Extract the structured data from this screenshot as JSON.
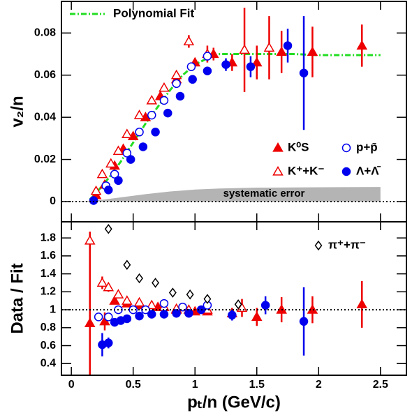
{
  "chart_data": [
    {
      "type": "scatter",
      "ylabel": "v₂/n",
      "xlim": [
        -0.08,
        2.71
      ],
      "ylim": [
        -0.0096,
        0.095
      ],
      "xticks": [
        0,
        0.5,
        1,
        1.5,
        2,
        2.5
      ],
      "yticks": [
        0,
        0.02,
        0.04,
        0.06,
        0.08
      ],
      "reference_line": 0,
      "band": {
        "name": "systematic error",
        "color": "#b4b4b4",
        "x": [
          0,
          0.2,
          0.4,
          0.6,
          0.8,
          1.0,
          1.2,
          1.5,
          2.0,
          2.5
        ],
        "values": [
          0,
          0.0005,
          0.002,
          0.0035,
          0.0048,
          0.0057,
          0.0062,
          0.0066,
          0.0068,
          0.0069
        ]
      },
      "fit": {
        "name": "Polynomial Fit",
        "color": "#22dd22",
        "x": [
          0.15,
          0.2,
          0.3,
          0.4,
          0.5,
          0.6,
          0.7,
          0.8,
          0.9,
          1.0,
          1.1,
          1.2,
          1.4,
          1.6,
          1.8,
          2.0,
          2.2,
          2.5
        ],
        "values": [
          0.001,
          0.004,
          0.011,
          0.019,
          0.028,
          0.037,
          0.045,
          0.053,
          0.06,
          0.065,
          0.068,
          0.07,
          0.07,
          0.07,
          0.07,
          0.0695,
          0.0695,
          0.0695
        ]
      },
      "series": [
        {
          "name": "K⁰S",
          "color": "#ee0000",
          "marker": "triangle",
          "filled": true,
          "x": [
            0.2,
            0.27,
            0.35,
            0.42,
            0.5,
            0.6,
            0.72,
            0.85,
            1.0,
            1.15,
            1.3,
            1.5,
            1.7,
            1.95,
            2.35
          ],
          "values": [
            0.003,
            0.008,
            0.017,
            0.025,
            0.031,
            0.04,
            0.05,
            0.058,
            0.066,
            0.07,
            0.066,
            0.066,
            0.071,
            0.071,
            0.074
          ],
          "errors": [
            0.002,
            0.001,
            0.001,
            0.001,
            0.001,
            0.001,
            0.001,
            0.001,
            0.002,
            0.003,
            0.004,
            0.008,
            0.01,
            0.012,
            0.01
          ]
        },
        {
          "name": "K⁺+K⁻",
          "color": "#ee0000",
          "marker": "triangle",
          "filled": false,
          "x": [
            0.2,
            0.25,
            0.32,
            0.38,
            0.45,
            0.55,
            0.65,
            0.75,
            0.85,
            0.95,
            1.1,
            1.4,
            1.6
          ],
          "values": [
            0.005,
            0.013,
            0.018,
            0.024,
            0.032,
            0.041,
            0.048,
            0.054,
            0.06,
            0.076,
            0.07,
            0.072,
            0.073
          ],
          "errors": [
            0.001,
            0.001,
            0.001,
            0.001,
            0.001,
            0.001,
            0.001,
            0.001,
            0.002,
            0.003,
            0.004,
            0.02,
            0.015
          ]
        },
        {
          "name": "p+p̄",
          "color": "#0000ee",
          "marker": "circle",
          "filled": false,
          "x": [
            0.28,
            0.35,
            0.45,
            0.55,
            0.65,
            0.75,
            0.85,
            0.97,
            1.1
          ],
          "values": [
            0.0075,
            0.013,
            0.023,
            0.033,
            0.041,
            0.048,
            0.056,
            0.064,
            0.069
          ],
          "errors": [
            0.001,
            0.001,
            0.001,
            0.001,
            0.001,
            0.001,
            0.001,
            0.002,
            0.002
          ]
        },
        {
          "name": "Λ+Λ̄",
          "color": "#0000ee",
          "marker": "circle",
          "filled": true,
          "x": [
            0.18,
            0.3,
            0.38,
            0.48,
            0.58,
            0.68,
            0.78,
            0.88,
            0.98,
            1.1,
            1.25,
            1.45,
            1.75,
            1.88
          ],
          "values": [
            0.0005,
            0.0055,
            0.01,
            0.02,
            0.026,
            0.033,
            0.042,
            0.05,
            0.058,
            0.062,
            0.065,
            0.064,
            0.074,
            0.061
          ],
          "errors": [
            0.002,
            0.001,
            0.001,
            0.001,
            0.001,
            0.001,
            0.001,
            0.001,
            0.001,
            0.002,
            0.003,
            0.005,
            0.008,
            0.027
          ]
        }
      ]
    },
    {
      "type": "scatter",
      "xlabel": "pₜ/n (GeV/c)",
      "ylabel": "Data / Fit",
      "xlim": [
        -0.08,
        2.71
      ],
      "ylim": [
        0.27,
        1.98
      ],
      "xticks": [
        0,
        0.5,
        1,
        1.5,
        2,
        2.5
      ],
      "yticks": [
        0.4,
        0.6,
        0.8,
        1,
        1.2,
        1.4,
        1.6,
        1.8
      ],
      "reference_line": 1,
      "series": [
        {
          "name": "K⁰S",
          "color": "#ee0000",
          "marker": "triangle",
          "filled": true,
          "x": [
            0.15,
            0.27,
            0.35,
            0.45,
            0.55,
            0.7,
            0.85,
            1.0,
            1.1,
            1.3,
            1.5,
            1.7,
            1.95,
            2.35
          ],
          "values": [
            0.85,
            0.87,
            1.1,
            1.07,
            1.05,
            1.03,
            1.0,
            0.98,
            0.98,
            0.96,
            0.92,
            1.0,
            1.0,
            1.06
          ],
          "errors": [
            0.9,
            0.1,
            0.04,
            0.03,
            0.03,
            0.03,
            0.03,
            0.03,
            0.04,
            0.06,
            0.1,
            0.14,
            0.15,
            0.26
          ]
        },
        {
          "name": "K⁺+K⁻",
          "color": "#ee0000",
          "marker": "triangle",
          "filled": false,
          "x": [
            0.15,
            0.25,
            0.3,
            0.38,
            0.45,
            0.55,
            0.65,
            0.75,
            0.85,
            0.95,
            1.1,
            1.38
          ],
          "values": [
            1.77,
            1.3,
            1.25,
            1.17,
            1.1,
            1.08,
            1.05,
            1.03,
            1.01,
            1.0,
            1.0,
            1.02
          ],
          "errors": [
            0.1,
            0.07,
            0.05,
            0.04,
            0.03,
            0.03,
            0.03,
            0.03,
            0.03,
            0.03,
            0.05,
            0.1
          ]
        },
        {
          "name": "p+p̄",
          "color": "#0000ee",
          "marker": "circle",
          "filled": false,
          "x": [
            0.22,
            0.3,
            0.38,
            0.5,
            0.6,
            0.75,
            0.9,
            1.1
          ],
          "values": [
            0.92,
            0.92,
            1.0,
            1.0,
            1.0,
            1.07,
            1.03,
            1.05
          ],
          "errors": [
            0.03,
            0.03,
            0.02,
            0.02,
            0.02,
            0.02,
            0.02,
            0.03
          ]
        },
        {
          "name": "Λ+Λ̄",
          "color": "#0000ee",
          "marker": "circle",
          "filled": true,
          "x": [
            0.25,
            0.3,
            0.35,
            0.4,
            0.45,
            0.55,
            0.65,
            0.75,
            0.85,
            0.95,
            1.05,
            1.3,
            1.57,
            1.88
          ],
          "values": [
            0.61,
            0.63,
            0.86,
            0.88,
            0.9,
            0.93,
            0.95,
            0.95,
            0.96,
            0.96,
            1.0,
            0.94,
            1.05,
            0.87
          ],
          "errors": [
            0.13,
            0.06,
            0.03,
            0.02,
            0.02,
            0.02,
            0.02,
            0.02,
            0.02,
            0.02,
            0.03,
            0.06,
            0.1,
            0.38
          ]
        },
        {
          "name": "π⁺+π⁻",
          "color": "#000000",
          "marker": "diamond",
          "filled": false,
          "x": [
            0.3,
            0.45,
            0.55,
            0.68,
            0.82,
            0.96,
            1.1,
            1.35
          ],
          "values": [
            1.9,
            1.5,
            1.35,
            1.3,
            1.19,
            1.17,
            1.12,
            1.06
          ],
          "errors": [
            0,
            0,
            0,
            0,
            0,
            0,
            0,
            0
          ]
        }
      ]
    }
  ]
}
